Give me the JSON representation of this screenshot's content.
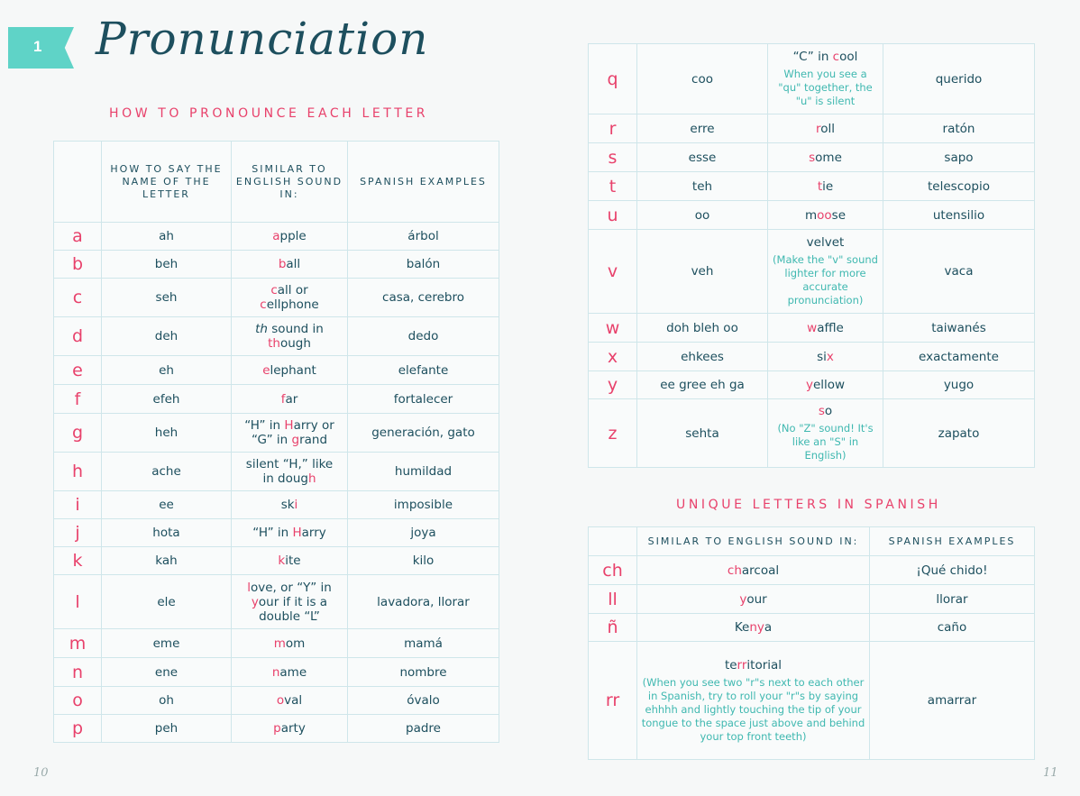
{
  "chapter_number": "1",
  "chapter_title": "Pronunciation",
  "colors": {
    "text": "#1d4f5e",
    "highlight": "#e8416b",
    "note": "#3fb8b0",
    "banner": "#5fd3c7",
    "border": "#cfe6ea"
  },
  "letters_table": {
    "title": "HOW TO PRONOUNCE EACH LETTER",
    "headers": [
      "",
      "HOW TO SAY THE NAME OF THE LETTER",
      "SIMILAR TO ENGLISH SOUND IN:",
      "SPANISH EXAMPLES"
    ],
    "rows": [
      {
        "letter": "a",
        "name": "ah",
        "similar": [
          {
            "t": "a",
            "h": true
          },
          {
            "t": "pple"
          }
        ],
        "example": "árbol"
      },
      {
        "letter": "b",
        "name": "beh",
        "similar": [
          {
            "t": "b",
            "h": true
          },
          {
            "t": "all"
          }
        ],
        "example": "balón"
      },
      {
        "letter": "c",
        "name": "seh",
        "similar": [
          {
            "t": "c",
            "h": true
          },
          {
            "t": "all or "
          },
          {
            "br": true
          },
          {
            "t": "c",
            "h": true
          },
          {
            "t": "ellphone"
          }
        ],
        "example": "casa, cerebro"
      },
      {
        "letter": "d",
        "name": "deh",
        "similar": [
          {
            "t": "th",
            "i": true
          },
          {
            "t": " sound in"
          },
          {
            "br": true
          },
          {
            "t": "th",
            "h": true
          },
          {
            "t": "ough"
          }
        ],
        "example": "dedo"
      },
      {
        "letter": "e",
        "name": "eh",
        "similar": [
          {
            "t": "e",
            "h": true
          },
          {
            "t": "lephant"
          }
        ],
        "example": "elefante"
      },
      {
        "letter": "f",
        "name": "efeh",
        "similar": [
          {
            "t": "f",
            "h": true
          },
          {
            "t": "ar"
          }
        ],
        "example": "fortalecer"
      },
      {
        "letter": "g",
        "name": "heh",
        "similar": [
          {
            "t": "“H” in "
          },
          {
            "t": "H",
            "h": true
          },
          {
            "t": "arry or"
          },
          {
            "br": true
          },
          {
            "t": "“G” in "
          },
          {
            "t": "g",
            "h": true
          },
          {
            "t": "rand"
          }
        ],
        "example": "generación, gato"
      },
      {
        "letter": "h",
        "name": "ache",
        "similar": [
          {
            "t": "silent “H,” like"
          },
          {
            "br": true
          },
          {
            "t": "in doug"
          },
          {
            "t": "h",
            "h": true
          }
        ],
        "example": "humildad"
      },
      {
        "letter": "i",
        "name": "ee",
        "similar": [
          {
            "t": "sk"
          },
          {
            "t": "i",
            "h": true
          }
        ],
        "example": "imposible"
      },
      {
        "letter": "j",
        "name": "hota",
        "similar": [
          {
            "t": "“H” in "
          },
          {
            "t": "H",
            "h": true
          },
          {
            "t": "arry"
          }
        ],
        "example": "joya"
      },
      {
        "letter": "k",
        "name": "kah",
        "similar": [
          {
            "t": "k",
            "h": true
          },
          {
            "t": "ite"
          }
        ],
        "example": "kilo"
      },
      {
        "letter": "l",
        "name": "ele",
        "similar": [
          {
            "t": "l",
            "h": true
          },
          {
            "t": "ove, or “Y” in"
          },
          {
            "br": true
          },
          {
            "t": "y",
            "h": true
          },
          {
            "t": "our if it is a"
          },
          {
            "br": true
          },
          {
            "t": "double “L”"
          }
        ],
        "example": "lavadora, llorar"
      },
      {
        "letter": "m",
        "name": "eme",
        "similar": [
          {
            "t": "m",
            "h": true
          },
          {
            "t": "om"
          }
        ],
        "example": "mamá"
      },
      {
        "letter": "n",
        "name": "ene",
        "similar": [
          {
            "t": "n",
            "h": true
          },
          {
            "t": "ame"
          }
        ],
        "example": "nombre"
      },
      {
        "letter": "o",
        "name": "oh",
        "similar": [
          {
            "t": "o",
            "h": true
          },
          {
            "t": "val"
          }
        ],
        "example": "óvalo"
      },
      {
        "letter": "p",
        "name": "peh",
        "similar": [
          {
            "t": "p",
            "h": true
          },
          {
            "t": "arty"
          }
        ],
        "example": "padre"
      }
    ]
  },
  "letters_table_cont": {
    "rows": [
      {
        "letter": "q",
        "name": "coo",
        "similar": [
          {
            "t": "“C” in "
          },
          {
            "t": "c",
            "h": true
          },
          {
            "t": "ool"
          }
        ],
        "note": "When you see a \"qu\" together, the \"u\" is silent",
        "example": "querido"
      },
      {
        "letter": "r",
        "name": "erre",
        "similar": [
          {
            "t": "r",
            "h": true
          },
          {
            "t": "oll"
          }
        ],
        "example": "ratón"
      },
      {
        "letter": "s",
        "name": "esse",
        "similar": [
          {
            "t": "s",
            "h": true
          },
          {
            "t": "ome"
          }
        ],
        "example": "sapo"
      },
      {
        "letter": "t",
        "name": "teh",
        "similar": [
          {
            "t": "t",
            "h": true
          },
          {
            "t": "ie"
          }
        ],
        "example": "telescopio"
      },
      {
        "letter": "u",
        "name": "oo",
        "similar": [
          {
            "t": "m"
          },
          {
            "t": "oo",
            "h": true
          },
          {
            "t": "se"
          }
        ],
        "example": "utensilio"
      },
      {
        "letter": "v",
        "name": "veh",
        "similar": [
          {
            "t": "velvet"
          }
        ],
        "note": "(Make the \"v\" sound lighter for more accurate pronunciation)",
        "example": "vaca"
      },
      {
        "letter": "w",
        "name": "doh bleh oo",
        "similar": [
          {
            "t": "w",
            "h": true
          },
          {
            "t": "affle"
          }
        ],
        "example": "taiwanés"
      },
      {
        "letter": "x",
        "name": "ehkees",
        "similar": [
          {
            "t": "si"
          },
          {
            "t": "x",
            "h": true
          }
        ],
        "example": "exactamente"
      },
      {
        "letter": "y",
        "name": "ee gree eh ga",
        "similar": [
          {
            "t": "y",
            "h": true
          },
          {
            "t": "ellow"
          }
        ],
        "example": "yugo"
      },
      {
        "letter": "z",
        "name": "sehta",
        "similar": [
          {
            "t": "s",
            "h": true
          },
          {
            "t": "o"
          }
        ],
        "note": "(No \"Z\" sound! It's like an \"S\" in English)",
        "example": "zapato"
      }
    ]
  },
  "unique_table": {
    "title": "UNIQUE LETTERS IN SPANISH",
    "headers": [
      "",
      "SIMILAR TO ENGLISH SOUND IN:",
      "SPANISH EXAMPLES"
    ],
    "rows": [
      {
        "letter": "ch",
        "similar": [
          {
            "t": "ch",
            "h": true
          },
          {
            "t": "arcoal"
          }
        ],
        "example": "¡Qué chido!"
      },
      {
        "letter": "ll",
        "similar": [
          {
            "t": "y",
            "h": true
          },
          {
            "t": "our"
          }
        ],
        "example": "llorar"
      },
      {
        "letter": "ñ",
        "similar": [
          {
            "t": "Ke"
          },
          {
            "t": "ny",
            "h": true
          },
          {
            "t": "a"
          }
        ],
        "example": "caño"
      },
      {
        "letter": "rr",
        "similar": [
          {
            "t": "te"
          },
          {
            "t": "rr",
            "h": true
          },
          {
            "t": "itorial"
          }
        ],
        "note": "(When you see two \"r\"s next to each other in Spanish, try to roll your \"r\"s by saying ehhhh and lightly touching the tip of your tongue to the space just above and behind your top front teeth)",
        "example": "amarrar"
      }
    ]
  },
  "page_numbers": {
    "left": "10",
    "right": "11"
  }
}
